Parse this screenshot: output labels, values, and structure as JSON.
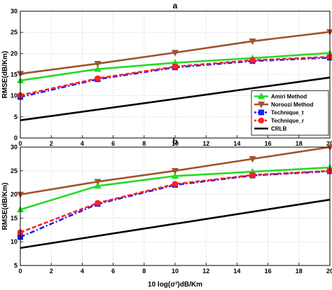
{
  "chart_data": [
    {
      "type": "line",
      "title": "a",
      "xlabel": "",
      "ylabel": "RMSE(dB/Km)",
      "xlim": [
        0,
        20
      ],
      "ylim": [
        0,
        30
      ],
      "xticks": [
        "0",
        "2",
        "4",
        "6",
        "8",
        "10",
        "12",
        "14",
        "16",
        "18",
        "20"
      ],
      "yticks": [
        "0",
        "5",
        "10",
        "15",
        "20",
        "25",
        "30"
      ],
      "grid": true,
      "legend_position": "lower-right",
      "series": [
        {
          "name": "Amiri Method",
          "color": "#22dd22",
          "marker": "triangle-up",
          "dash": "solid",
          "x": [
            0,
            5,
            10,
            15,
            20
          ],
          "y": [
            13.6,
            16.3,
            17.8,
            18.9,
            20.1
          ]
        },
        {
          "name": "Noroozi Method",
          "color": "#a0522d",
          "marker": "triangle-down",
          "dash": "solid",
          "x": [
            0,
            5,
            10,
            15,
            20
          ],
          "y": [
            15.2,
            17.6,
            20.2,
            22.9,
            25.1
          ]
        },
        {
          "name": "Technique_t",
          "color": "#1a1aff",
          "marker": "square",
          "dash": "dashdot",
          "x": [
            0,
            5,
            10,
            15,
            20
          ],
          "y": [
            9.7,
            13.9,
            16.7,
            18.2,
            19.0
          ]
        },
        {
          "name": "Technique_r",
          "color": "#ff2020",
          "marker": "circle",
          "dash": "dashed",
          "x": [
            0,
            5,
            10,
            15,
            20
          ],
          "y": [
            10.1,
            14.1,
            16.9,
            18.4,
            19.2
          ]
        },
        {
          "name": "CRLB",
          "color": "#000000",
          "marker": "none",
          "dash": "solid",
          "x": [
            0,
            20
          ],
          "y": [
            4.2,
            14.3
          ]
        }
      ]
    },
    {
      "type": "line",
      "title": "b",
      "xlabel": "10 log(σ²)dB/Km",
      "ylabel": "RMSE(dB/Km)",
      "xlim": [
        0,
        20
      ],
      "ylim": [
        5,
        30
      ],
      "xticks": [
        "0",
        "2",
        "4",
        "6",
        "8",
        "10",
        "12",
        "14",
        "16",
        "18",
        "20"
      ],
      "yticks": [
        "5",
        "10",
        "15",
        "20",
        "25",
        "30"
      ],
      "grid": true,
      "legend_position": "none",
      "series": [
        {
          "name": "Amiri Method",
          "color": "#22dd22",
          "marker": "triangle-up",
          "dash": "solid",
          "x": [
            0,
            5,
            10,
            15,
            20
          ],
          "y": [
            16.8,
            21.8,
            23.9,
            24.8,
            25.7
          ]
        },
        {
          "name": "Noroozi Method",
          "color": "#a0522d",
          "marker": "triangle-down",
          "dash": "solid",
          "x": [
            0,
            5,
            10,
            15,
            20
          ],
          "y": [
            20.0,
            22.7,
            25.0,
            27.5,
            30.0
          ]
        },
        {
          "name": "Technique_t",
          "color": "#1a1aff",
          "marker": "square",
          "dash": "dashdot",
          "x": [
            0,
            5,
            10,
            15,
            20
          ],
          "y": [
            11.0,
            18.0,
            22.0,
            24.0,
            24.9
          ]
        },
        {
          "name": "Technique_r",
          "color": "#ff2020",
          "marker": "circle",
          "dash": "dashed",
          "x": [
            0,
            5,
            10,
            15,
            20
          ],
          "y": [
            12.0,
            18.2,
            22.2,
            24.1,
            25.0
          ]
        },
        {
          "name": "CRLB",
          "color": "#000000",
          "marker": "none",
          "dash": "solid",
          "x": [
            0,
            20
          ],
          "y": [
            8.7,
            18.9
          ]
        }
      ]
    }
  ]
}
